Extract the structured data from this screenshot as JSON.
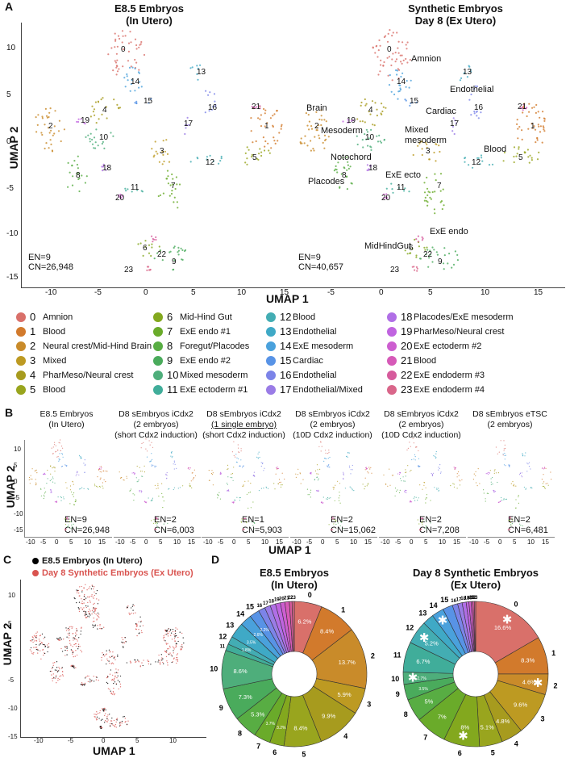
{
  "panel_labels": {
    "a": "A",
    "b": "B",
    "c": "C",
    "d": "D"
  },
  "panelA": {
    "left_title": "E8.5 Embryos\n(In Utero)",
    "right_title": "Synthetic Embryos\nDay 8 (Ex Utero)",
    "y_axis": "UMAP 2",
    "x_axis": "UMAP 1",
    "y_ticks": [
      "10",
      "5",
      "0",
      "-5",
      "-10",
      "-15"
    ],
    "x_ticks": [
      "-10",
      "-5",
      "0",
      "5",
      "10",
      "15",
      "-5",
      "0",
      "5",
      "10",
      "15"
    ],
    "left_counts": [
      "EN=9",
      "CN=26,948"
    ],
    "right_counts": [
      "EN=9",
      "CN=40,657"
    ],
    "annotations": [
      "Amnion",
      "Cardiac",
      "Endothelial",
      "Brain",
      "Mesoderm",
      "Mixed\nmesoderm",
      "Notochord",
      "Blood",
      "ExE ecto",
      "Placodes",
      "ExE endo",
      "MidHindGut"
    ]
  },
  "legend": [
    {
      "num": "0",
      "label": "Amnion",
      "color": "#d9706a"
    },
    {
      "num": "1",
      "label": "Blood",
      "color": "#d27a2c"
    },
    {
      "num": "2",
      "label": "Neural crest/Mid-Hind Brain",
      "color": "#c98b2a"
    },
    {
      "num": "3",
      "label": "Mixed",
      "color": "#bd9a22"
    },
    {
      "num": "4",
      "label": "PharMeso/Neural crest",
      "color": "#a79b1e"
    },
    {
      "num": "5",
      "label": "Blood",
      "color": "#99a51e"
    },
    {
      "num": "6",
      "label": "Mid-Hind Gut",
      "color": "#83a81e"
    },
    {
      "num": "7",
      "label": "ExE endo #1",
      "color": "#6aab2a"
    },
    {
      "num": "8",
      "label": "Foregut/Placodes",
      "color": "#58ad43"
    },
    {
      "num": "9",
      "label": "ExE endo #2",
      "color": "#4aab5c"
    },
    {
      "num": "10",
      "label": "Mixed mesoderm",
      "color": "#4eae7b"
    },
    {
      "num": "11",
      "label": "ExE ectoderm #1",
      "color": "#40ad9a"
    },
    {
      "num": "12",
      "label": "Blood",
      "color": "#43adb3"
    },
    {
      "num": "13",
      "label": "Endothelial",
      "color": "#3fa9c6"
    },
    {
      "num": "14",
      "label": "ExE mesoderm",
      "color": "#4aa1dc"
    },
    {
      "num": "15",
      "label": "Cardiac",
      "color": "#5893e6"
    },
    {
      "num": "16",
      "label": "Endothelial",
      "color": "#7c84e8"
    },
    {
      "num": "17",
      "label": "Endothelial/Mixed",
      "color": "#9a7ce6"
    },
    {
      "num": "18",
      "label": "Placodes/ExE mesoderm",
      "color": "#b06fe6"
    },
    {
      "num": "19",
      "label": "PharMeso/Neural crest",
      "color": "#c064e0"
    },
    {
      "num": "20",
      "label": "ExE ectoderm #2",
      "color": "#cd5ed0"
    },
    {
      "num": "21",
      "label": "Blood",
      "color": "#d65ab8"
    },
    {
      "num": "22",
      "label": "ExE endoderm #3",
      "color": "#d65b9c"
    },
    {
      "num": "23",
      "label": "ExE endoderm #4",
      "color": "#d9668a"
    }
  ],
  "panelB": {
    "y_axis": "UMAP 2",
    "x_axis": "UMAP 1",
    "y_ticks": [
      "10",
      "5",
      "0",
      "-5",
      "-10",
      "-15"
    ],
    "x_ticks": [
      "-10",
      "-5",
      "0",
      "5",
      "10",
      "15"
    ],
    "subplots": [
      {
        "title": "E8.5 Embryos\n(In Utero)",
        "en": "EN=9",
        "cn": "CN=26,948"
      },
      {
        "title": "D8 sEmbryos iCdx2\n(2 embryos)\n(short Cdx2 induction)",
        "en": "EN=2",
        "cn": "CN=6,003"
      },
      {
        "title": "D8 sEmbryos iCdx2\n(1 single embryo)\n(short Cdx2 induction)",
        "en": "EN=1",
        "cn": "CN=5,903"
      },
      {
        "title": "D8 sEmbryos iCdx2\n(2 embryos)\n(10D Cdx2 induction)",
        "en": "EN=2",
        "cn": "CN=15,062"
      },
      {
        "title": "D8 sEmbryos iCdx2\n(2 embryos)\n(10D Cdx2 induction)",
        "en": "EN=2",
        "cn": "CN=7,208"
      },
      {
        "title": "D8 sEmbryos eTSC\n(2 embryos)",
        "en": "EN=2",
        "cn": "CN=6,481"
      }
    ]
  },
  "panelC": {
    "legend": [
      {
        "label": "E8.5 Embryos (In Utero)",
        "color": "#000000"
      },
      {
        "label": "Day 8 Synthetic Embryos (Ex Utero)",
        "color": "#d9534f"
      }
    ],
    "y_axis": "UMAP 2",
    "x_axis": "UMAP 1",
    "y_ticks": [
      "10",
      "5",
      "0",
      "-5",
      "-10",
      "-15"
    ],
    "x_ticks": [
      "-10",
      "-5",
      "0",
      "5",
      "10"
    ]
  },
  "chart_data": [
    {
      "type": "pie",
      "title": "E8.5 Embryos\n(In Utero)",
      "categories": [
        "0",
        "1",
        "2",
        "3",
        "4",
        "5",
        "6",
        "7",
        "8",
        "9",
        "10",
        "11",
        "12",
        "13",
        "14",
        "15",
        "16",
        "17",
        "18",
        "19",
        "20",
        "21",
        "22",
        "23"
      ],
      "values": [
        6.2,
        8.4,
        13.7,
        5.9,
        9.9,
        8.4,
        3.2,
        3.7,
        5.3,
        7.3,
        8.6,
        1.5,
        1.8,
        3.5,
        2.6,
        2.2,
        1.5,
        1.3,
        1.2,
        1.1,
        1.0,
        1.0,
        0.6,
        0.5
      ],
      "value_labels": [
        "6.2%",
        "8.4%",
        "13.7%",
        "5.9%",
        "9.9%",
        "8.4%",
        "3.2%",
        "3.7%",
        "5.3%",
        "7.3%",
        "8.6%",
        "",
        "1.8%",
        "3.5%",
        "2.6%",
        "2.2%",
        "",
        "",
        "",
        "",
        "",
        "",
        "",
        ""
      ]
    },
    {
      "type": "pie",
      "title": "Day 8 Synthetic Embryos\n(Ex Utero)",
      "categories": [
        "0",
        "1",
        "2",
        "3",
        "4",
        "5",
        "6",
        "7",
        "8",
        "9",
        "10",
        "11",
        "12",
        "13",
        "14",
        "15",
        "16",
        "17",
        "18",
        "19",
        "20",
        "21",
        "22",
        "23"
      ],
      "values": [
        16.6,
        8.3,
        4.6,
        9.6,
        4.8,
        5.1,
        8.0,
        7.0,
        5.0,
        3.5,
        2.7,
        6.7,
        5.2,
        2.5,
        2.7,
        2.2,
        1.2,
        1.0,
        0.9,
        0.6,
        0.5,
        0.4,
        0.3,
        0.3
      ],
      "value_labels": [
        "16.6%",
        "8.3%",
        "4.6%",
        "9.6%",
        "4.8%",
        "5.1%",
        "8%",
        "7%",
        "5%",
        "3.5%",
        "2.7%",
        "6.7%",
        "5.2%",
        "",
        "",
        "",
        "",
        "",
        "",
        "",
        "",
        "",
        "",
        ""
      ],
      "starred": [
        "0",
        "2",
        "6",
        "10",
        "12",
        "14"
      ]
    }
  ]
}
